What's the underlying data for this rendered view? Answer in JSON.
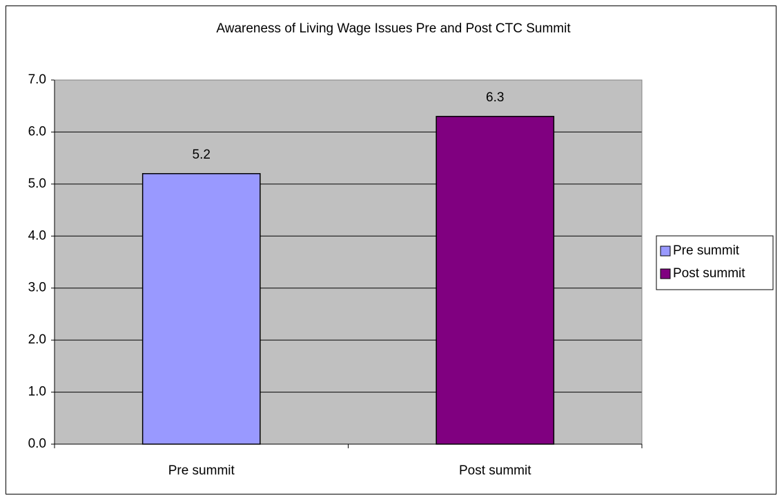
{
  "chart_data": {
    "type": "bar",
    "title": "Awareness of Living Wage Issues Pre and Post CTC Summit",
    "categories": [
      "Pre summit",
      "Post summit"
    ],
    "values": [
      5.2,
      6.3
    ],
    "colors": [
      "#9999ff",
      "#800080"
    ],
    "ylim": [
      0,
      7
    ],
    "yticks": [
      {
        "value": 0,
        "label": "0.0"
      },
      {
        "value": 1,
        "label": "1.0"
      },
      {
        "value": 2,
        "label": "2.0"
      },
      {
        "value": 3,
        "label": "3.0"
      },
      {
        "value": 4,
        "label": "4.0"
      },
      {
        "value": 5,
        "label": "5.0"
      },
      {
        "value": 6,
        "label": "6.0"
      },
      {
        "value": 7,
        "label": "7.0"
      }
    ],
    "grid": true,
    "legend": "right"
  }
}
